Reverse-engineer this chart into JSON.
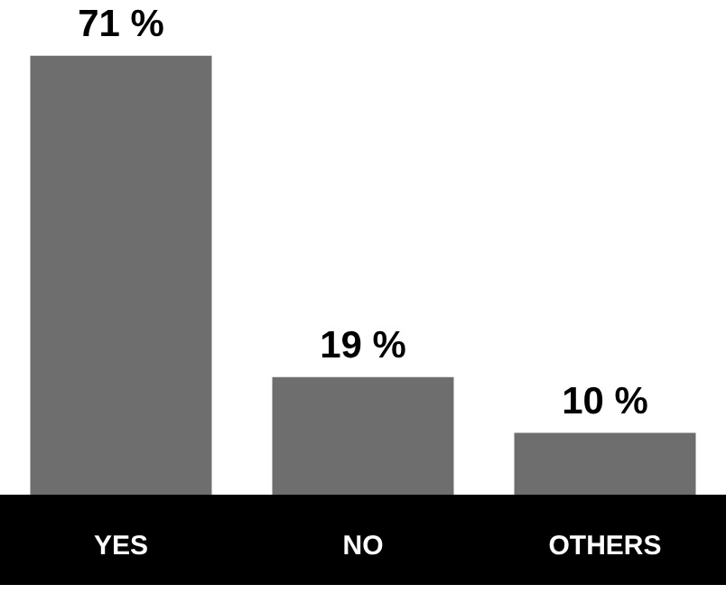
{
  "chart_data": {
    "type": "bar",
    "categories": [
      "YES",
      "NO",
      "OTHERS"
    ],
    "values": [
      71,
      19,
      10
    ],
    "value_labels": [
      "71 %",
      "19 %",
      "10 %"
    ],
    "color": "#6e6e6e"
  }
}
